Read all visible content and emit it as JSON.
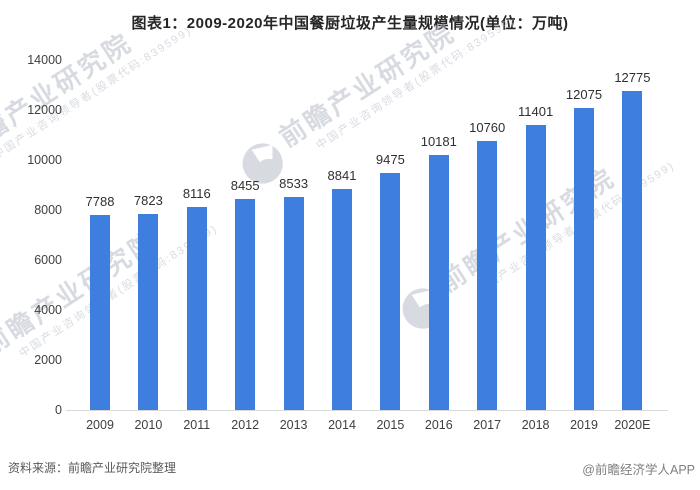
{
  "chart": {
    "title": "图表1：2009-2020年中国餐厨垃圾产生量规模情况(单位：万吨)",
    "source": "资料来源：前瞻产业研究院整理",
    "brand": "@前瞻经济学人APP",
    "watermark": {
      "main": "前瞻产业研究院",
      "sub": "中国产业咨询领导者(股票代码:839599)"
    }
  },
  "chart_data": {
    "type": "bar",
    "title": "图表1：2009-2020年中国餐厨垃圾产生量规模情况(单位：万吨)",
    "categories": [
      "2009",
      "2010",
      "2011",
      "2012",
      "2013",
      "2014",
      "2015",
      "2016",
      "2017",
      "2018",
      "2019",
      "2020E"
    ],
    "values": [
      7788,
      7823,
      8116,
      8455,
      8533,
      8841,
      9475,
      10181,
      10760,
      11401,
      12075,
      12775
    ],
    "xlabel": "",
    "ylabel": "",
    "unit": "万吨",
    "ylim": [
      0,
      14000
    ],
    "ytick_step": 2000,
    "grid": false,
    "legend_position": "none",
    "bar_color": "#3E7EDE",
    "label_color": "#303030",
    "axis_line_color": "#D9D9D9"
  }
}
